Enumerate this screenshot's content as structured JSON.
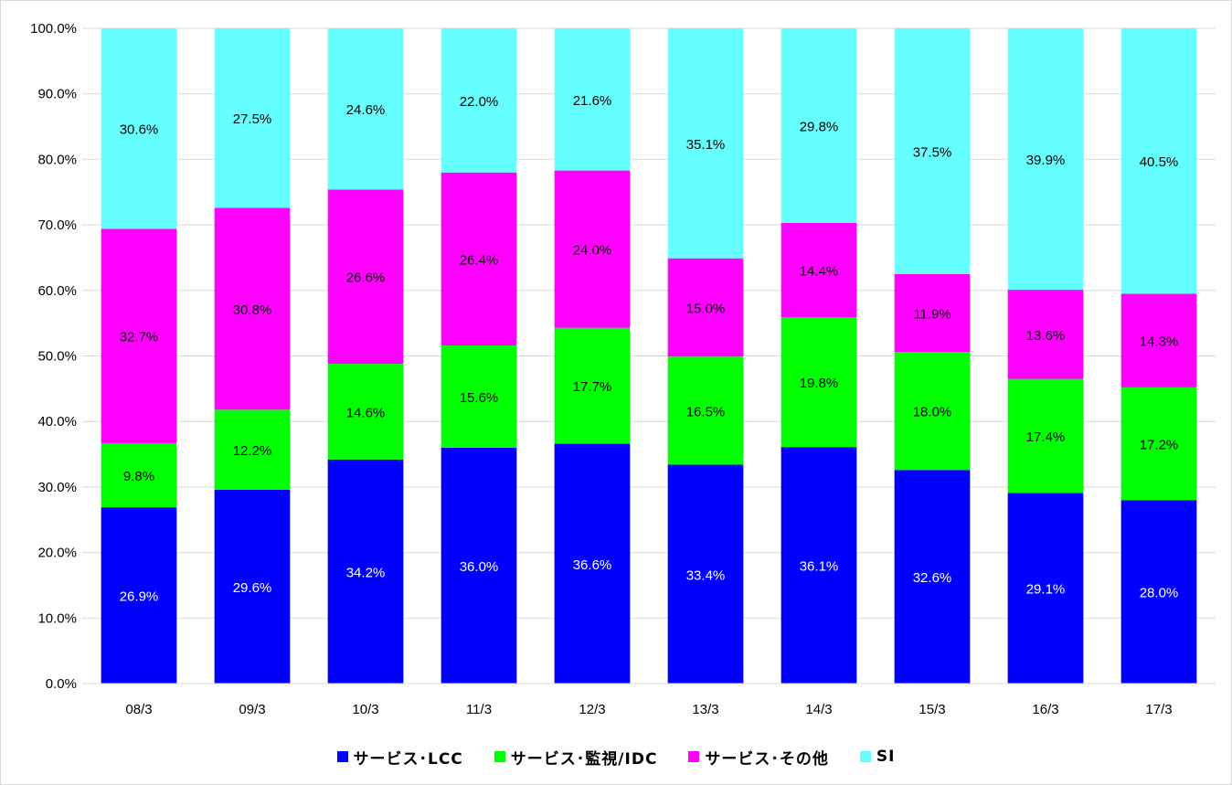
{
  "chart_data": {
    "type": "bar",
    "stacked": true,
    "categories": [
      "08/3",
      "09/3",
      "10/3",
      "11/3",
      "12/3",
      "13/3",
      "14/3",
      "15/3",
      "16/3",
      "17/3"
    ],
    "series": [
      {
        "name": "サービス･LCC",
        "color": "#0000ff",
        "label_color": "#ffffff",
        "values": [
          26.9,
          29.6,
          34.2,
          36.0,
          36.6,
          33.4,
          36.1,
          32.6,
          29.1,
          28.0
        ],
        "labels": [
          "26.9%",
          "29.6%",
          "34.2%",
          "36.0%",
          "36.6%",
          "33.4%",
          "36.1%",
          "32.6%",
          "29.1%",
          "28.0%"
        ]
      },
      {
        "name": "サービス･監視/IDC",
        "color": "#00ff00",
        "label_color": "#000000",
        "values": [
          9.8,
          12.2,
          14.6,
          15.6,
          17.7,
          16.5,
          19.8,
          18.0,
          17.4,
          17.2
        ],
        "labels": [
          "9.8%",
          "12.2%",
          "14.6%",
          "15.6%",
          "17.7%",
          "16.5%",
          "19.8%",
          "18.0%",
          "17.4%",
          "17.2%"
        ]
      },
      {
        "name": "サービス･その他",
        "color": "#ff00ff",
        "label_color": "#000000",
        "values": [
          32.7,
          30.8,
          26.6,
          26.4,
          24.0,
          15.0,
          14.4,
          11.9,
          13.6,
          14.3
        ],
        "labels": [
          "32.7%",
          "30.8%",
          "26.6%",
          "26.4%",
          "24.0%",
          "15.0%",
          "14.4%",
          "11.9%",
          "13.6%",
          "14.3%"
        ]
      },
      {
        "name": "SI",
        "color": "#66ffff",
        "label_color": "#000000",
        "values": [
          30.6,
          27.5,
          24.6,
          22.0,
          21.6,
          35.1,
          29.8,
          37.5,
          39.9,
          40.5
        ],
        "labels": [
          "30.6%",
          "27.5%",
          "24.6%",
          "22.0%",
          "21.6%",
          "35.1%",
          "29.8%",
          "37.5%",
          "39.9%",
          "40.5%"
        ]
      }
    ],
    "ylim": [
      0,
      100
    ],
    "yticks": [
      "0.0%",
      "10.0%",
      "20.0%",
      "30.0%",
      "40.0%",
      "50.0%",
      "60.0%",
      "70.0%",
      "80.0%",
      "90.0%",
      "100.0%"
    ],
    "grid": true,
    "legend_position": "bottom"
  }
}
